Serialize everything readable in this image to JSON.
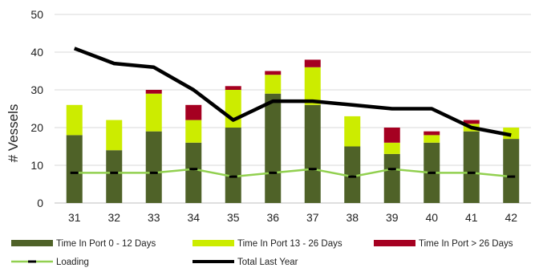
{
  "chart_data": {
    "type": "bar",
    "title": "",
    "xlabel": "",
    "ylabel": "# Vessels",
    "ylim": [
      0,
      50
    ],
    "yticks": [
      0,
      10,
      20,
      30,
      40,
      50
    ],
    "grid": true,
    "legend_position": "bottom",
    "categories": [
      "31",
      "32",
      "33",
      "34",
      "35",
      "36",
      "37",
      "38",
      "39",
      "40",
      "41",
      "42"
    ],
    "series": [
      {
        "name": "Time In Port 0 - 12 Days",
        "kind": "bar",
        "color": "#4f6228",
        "values": [
          18,
          14,
          19,
          16,
          20,
          29,
          26,
          15,
          13,
          16,
          19,
          17
        ]
      },
      {
        "name": "Time In Port 13 - 26 Days",
        "kind": "bar",
        "color": "#ccec00",
        "values": [
          8,
          8,
          10,
          6,
          10,
          5,
          10,
          8,
          3,
          2,
          2,
          3
        ]
      },
      {
        "name": "Time In Port > 26 Days",
        "kind": "bar",
        "color": "#a50021",
        "values": [
          0,
          0,
          1,
          4,
          1,
          1,
          2,
          0,
          4,
          1,
          1,
          0
        ]
      },
      {
        "name": "Loading",
        "kind": "line",
        "color": "#92d050",
        "marker_color": "#000000",
        "values": [
          8,
          8,
          8,
          9,
          7,
          8,
          9,
          7,
          9,
          8,
          8,
          7
        ]
      },
      {
        "name": "Total Last Year",
        "kind": "line",
        "color": "#000000",
        "values": [
          41,
          37,
          36,
          30,
          22,
          27,
          27,
          26,
          25,
          25,
          20,
          18
        ]
      }
    ]
  }
}
